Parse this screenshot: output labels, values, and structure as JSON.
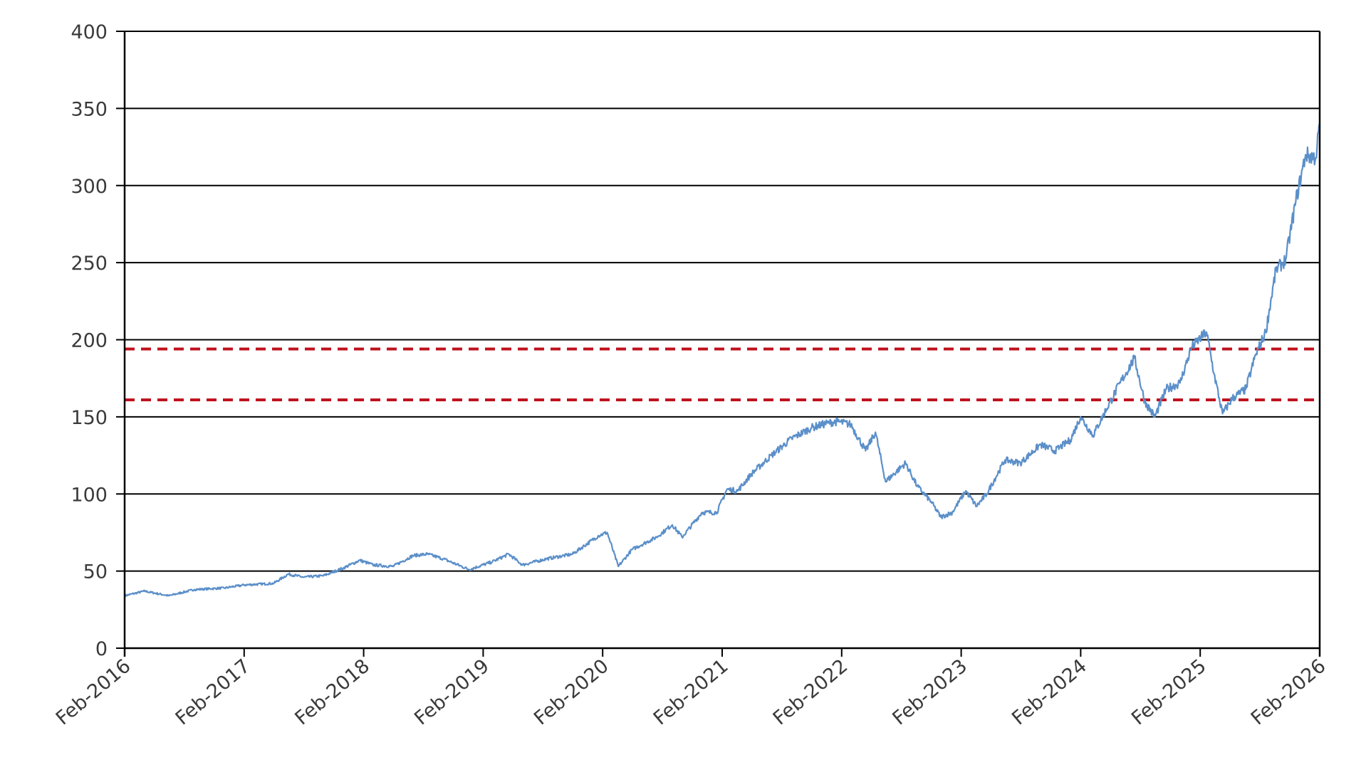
{
  "chart_data": {
    "type": "line",
    "title": "",
    "xlabel": "",
    "ylabel": "",
    "ylim": [
      0,
      400
    ],
    "yticks": [
      "0",
      "50",
      "100",
      "150",
      "200",
      "250",
      "300",
      "350",
      "400"
    ],
    "xlim": [
      "2016-02",
      "2026-02"
    ],
    "xticks": [
      "Feb-2016",
      "Feb-2017",
      "Feb-2018",
      "Feb-2019",
      "Feb-2020",
      "Feb-2021",
      "Feb-2022",
      "Feb-2023",
      "Feb-2024",
      "Feb-2025",
      "Feb-2026"
    ],
    "grid": true,
    "legend": "none",
    "series": [
      {
        "color": "#5b8fc9",
        "points": [
          [
            "2016-02-01",
            34
          ],
          [
            "2016-04-01",
            37
          ],
          [
            "2016-06-15",
            34
          ],
          [
            "2016-09-01",
            38
          ],
          [
            "2016-12-01",
            39
          ],
          [
            "2017-02-01",
            41
          ],
          [
            "2017-05-01",
            42
          ],
          [
            "2017-06-15",
            48
          ],
          [
            "2017-08-01",
            46
          ],
          [
            "2017-10-01",
            47
          ],
          [
            "2017-12-01",
            52
          ],
          [
            "2018-01-20",
            57
          ],
          [
            "2018-03-01",
            54
          ],
          [
            "2018-05-01",
            53
          ],
          [
            "2018-07-01",
            60
          ],
          [
            "2018-08-15",
            61
          ],
          [
            "2018-10-01",
            58
          ],
          [
            "2018-12-20",
            51
          ],
          [
            "2019-03-01",
            56
          ],
          [
            "2019-04-20",
            61
          ],
          [
            "2019-06-01",
            54
          ],
          [
            "2019-08-15",
            58
          ],
          [
            "2019-11-01",
            61
          ],
          [
            "2020-01-20",
            73
          ],
          [
            "2020-02-15",
            75
          ],
          [
            "2020-03-20",
            53
          ],
          [
            "2020-05-01",
            64
          ],
          [
            "2020-07-15",
            72
          ],
          [
            "2020-09-01",
            80
          ],
          [
            "2020-10-01",
            72
          ],
          [
            "2020-12-01",
            88
          ],
          [
            "2021-01-15",
            88
          ],
          [
            "2021-02-15",
            103
          ],
          [
            "2021-03-20",
            102
          ],
          [
            "2021-05-01",
            113
          ],
          [
            "2021-07-01",
            125
          ],
          [
            "2021-09-01",
            136
          ],
          [
            "2021-11-01",
            143
          ],
          [
            "2021-12-20",
            146
          ],
          [
            "2022-01-20",
            147
          ],
          [
            "2022-03-01",
            145
          ],
          [
            "2022-04-15",
            128
          ],
          [
            "2022-05-15",
            140
          ],
          [
            "2022-06-15",
            108
          ],
          [
            "2022-08-15",
            120
          ],
          [
            "2022-09-20",
            105
          ],
          [
            "2022-11-01",
            95
          ],
          [
            "2022-12-01",
            85
          ],
          [
            "2023-01-05",
            88
          ],
          [
            "2023-02-15",
            102
          ],
          [
            "2023-03-20",
            92
          ],
          [
            "2023-04-20",
            100
          ],
          [
            "2023-06-15",
            122
          ],
          [
            "2023-08-01",
            120
          ],
          [
            "2023-10-01",
            132
          ],
          [
            "2023-11-15",
            128
          ],
          [
            "2024-01-01",
            135
          ],
          [
            "2024-02-01",
            150
          ],
          [
            "2024-03-10",
            138
          ],
          [
            "2024-04-20",
            155
          ],
          [
            "2024-06-01",
            172
          ],
          [
            "2024-07-15",
            188
          ],
          [
            "2024-08-15",
            160
          ],
          [
            "2024-09-15",
            150
          ],
          [
            "2024-10-20",
            168
          ],
          [
            "2024-12-01",
            172
          ],
          [
            "2025-01-05",
            195
          ],
          [
            "2025-02-20",
            205
          ],
          [
            "2025-03-15",
            178
          ],
          [
            "2025-04-10",
            152
          ],
          [
            "2025-05-10",
            162
          ],
          [
            "2025-06-20",
            168
          ],
          [
            "2025-07-20",
            190
          ],
          [
            "2025-08-20",
            205
          ],
          [
            "2025-09-20",
            245
          ],
          [
            "2025-10-20",
            252
          ],
          [
            "2025-11-20",
            290
          ],
          [
            "2025-12-20",
            320
          ],
          [
            "2026-01-20",
            318
          ],
          [
            "2026-02-01",
            340
          ]
        ]
      }
    ],
    "reference_lines": [
      {
        "y": 194,
        "color": "#c0121e",
        "style": "dashed"
      },
      {
        "y": 161,
        "color": "#c0121e",
        "style": "dashed"
      }
    ]
  }
}
